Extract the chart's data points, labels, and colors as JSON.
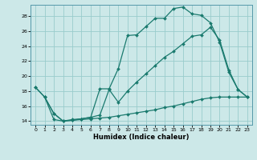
{
  "xlabel": "Humidex (Indice chaleur)",
  "background_color": "#cce8e8",
  "grid_color": "#99cccc",
  "line_color": "#1a7a6e",
  "xlim": [
    -0.5,
    23.5
  ],
  "ylim": [
    13.5,
    29.5
  ],
  "yticks": [
    14,
    16,
    18,
    20,
    22,
    24,
    26,
    28
  ],
  "xticks": [
    0,
    1,
    2,
    3,
    4,
    5,
    6,
    7,
    8,
    9,
    10,
    11,
    12,
    13,
    14,
    15,
    16,
    17,
    18,
    19,
    20,
    21,
    22,
    23
  ],
  "series1_x": [
    0,
    1,
    2,
    3,
    4,
    5,
    6,
    7,
    8,
    9,
    10,
    11,
    12,
    13,
    14,
    15,
    16,
    17,
    18,
    19,
    20,
    21,
    22,
    23
  ],
  "series1_y": [
    18.5,
    17.2,
    14.2,
    14.0,
    14.2,
    14.3,
    14.5,
    18.3,
    18.3,
    21.0,
    25.4,
    25.5,
    26.6,
    27.7,
    27.7,
    29.0,
    29.2,
    28.3,
    28.1,
    27.1,
    24.5,
    20.5,
    18.2,
    17.2
  ],
  "series2_x": [
    0,
    1,
    2,
    3,
    4,
    5,
    6,
    7,
    8,
    9,
    10,
    11,
    12,
    13,
    14,
    15,
    16,
    17,
    18,
    19,
    20,
    21,
    22,
    23
  ],
  "series2_y": [
    18.5,
    17.2,
    15.0,
    14.0,
    14.1,
    14.2,
    14.3,
    14.4,
    14.5,
    14.7,
    14.9,
    15.1,
    15.3,
    15.5,
    15.8,
    16.0,
    16.3,
    16.6,
    16.9,
    17.1,
    17.2,
    17.2,
    17.2,
    17.2
  ],
  "series3_x": [
    1,
    2,
    3,
    4,
    5,
    6,
    7,
    8,
    9,
    10,
    11,
    12,
    13,
    14,
    15,
    16,
    17,
    18,
    19,
    20,
    21,
    22,
    23
  ],
  "series3_y": [
    17.2,
    15.0,
    14.0,
    14.1,
    14.3,
    14.5,
    14.8,
    18.2,
    16.5,
    18.0,
    19.2,
    20.3,
    21.4,
    22.5,
    23.3,
    24.3,
    25.3,
    25.5,
    26.5,
    24.8,
    20.8,
    18.2,
    17.2
  ]
}
